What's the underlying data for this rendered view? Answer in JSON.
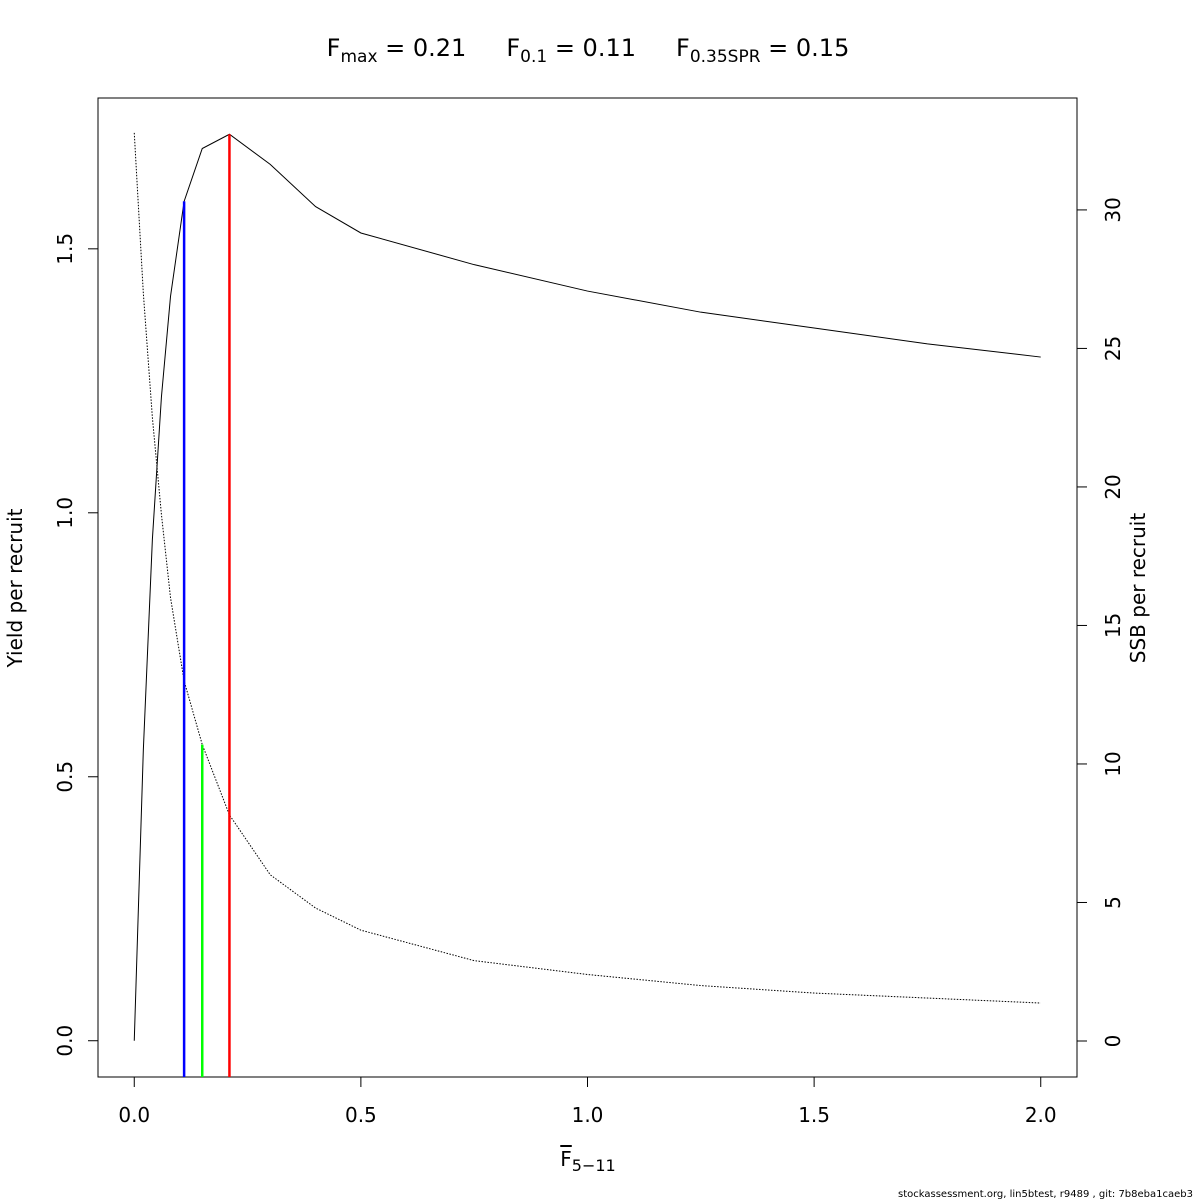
{
  "chart_data": {
    "type": "line",
    "title": [
      {
        "main": "F",
        "sub": "max",
        "rest": " = 0.21"
      },
      {
        "main": "F",
        "sub": "0.1",
        "rest": " = 0.11"
      },
      {
        "main": "F",
        "sub": "0.35SPR",
        "rest": " = 0.15"
      }
    ],
    "xlabel": {
      "main": "F",
      "sub": "5−11"
    },
    "ylabel": "Yield per recruit",
    "y2label": "SSB per recruit",
    "footer": "stockassessment.org, lin5btest, r9489 , git: 7b8eba1caeb3",
    "x": [
      0,
      0.02,
      0.04,
      0.06,
      0.08,
      0.11,
      0.15,
      0.21,
      0.3,
      0.4,
      0.5,
      0.75,
      1,
      1.25,
      1.5,
      1.75,
      2
    ],
    "series": [
      {
        "color": "#000000",
        "style": "solid",
        "values": [
          0,
          0.55,
          0.95,
          1.22,
          1.41,
          1.59,
          1.69,
          1.717,
          1.66,
          1.58,
          1.53,
          1.47,
          1.42,
          1.38,
          1.35,
          1.32,
          1.295
        ]
      },
      {
        "color": "#000000",
        "style": "dotted",
        "axis": "y2",
        "values": [
          32.78,
          27,
          22.5,
          19,
          16,
          13,
          10.7,
          8.16,
          6.0,
          4.8,
          4.0,
          2.9,
          2.4,
          2.0,
          1.73,
          1.55,
          1.37
        ]
      }
    ],
    "reference_lines": [
      {
        "x": 0.11,
        "top": 1.59,
        "color": "#0000ff"
      },
      {
        "x": 0.15,
        "top": 10.7,
        "axis": "y2",
        "color": "#00ff00"
      },
      {
        "x": 0.21,
        "top": 1.717,
        "color": "#ff0000"
      }
    ],
    "xlim": [
      -0.08,
      2.08
    ],
    "xticks": [
      {
        "value": 0,
        "label": "0.0"
      },
      {
        "value": 0.5,
        "label": "0.5"
      },
      {
        "value": 1,
        "label": "1.0"
      },
      {
        "value": 1.5,
        "label": "1.5"
      },
      {
        "value": 2,
        "label": "2.0"
      }
    ],
    "ylim": [
      -0.0687,
      1.7857
    ],
    "yticks": [
      {
        "value": 0,
        "label": "0.0"
      },
      {
        "value": 0.5,
        "label": "0.5"
      },
      {
        "value": 1,
        "label": "1.0"
      },
      {
        "value": 1.5,
        "label": "1.5"
      }
    ],
    "y2lim": [
      -1.3,
      34.04
    ],
    "y2ticks": [
      0,
      5,
      10,
      15,
      20,
      25,
      30
    ]
  }
}
